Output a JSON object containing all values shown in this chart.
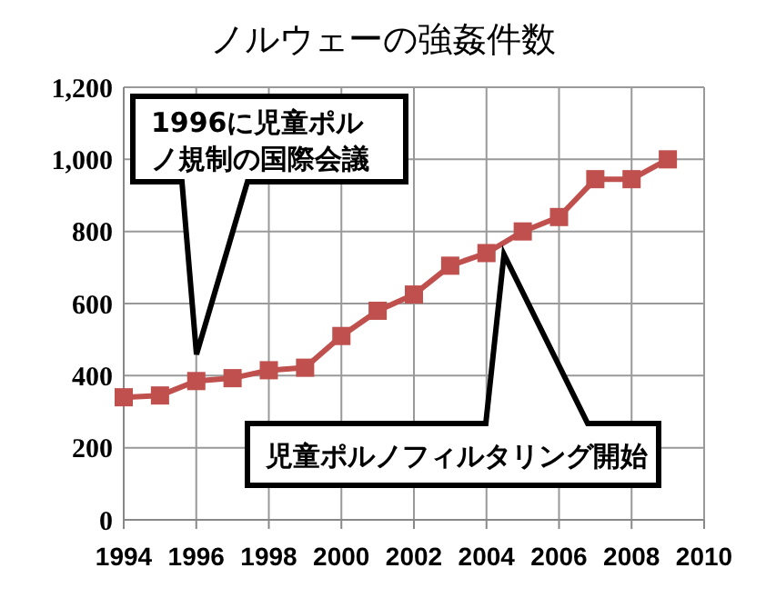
{
  "chart_data": {
    "type": "line",
    "title": "ノルウェーの強姦件数",
    "x": [
      1994,
      1995,
      1996,
      1997,
      1998,
      1999,
      2000,
      2001,
      2002,
      2003,
      2004,
      2005,
      2006,
      2007,
      2008,
      2009
    ],
    "series": [
      {
        "color": "#c0504d",
        "values": [
          340,
          345,
          385,
          393,
          415,
          422,
          510,
          580,
          625,
          705,
          740,
          800,
          840,
          945,
          945,
          1000
        ]
      }
    ],
    "xlim": [
      1994,
      2010
    ],
    "xticks": [
      1994,
      1996,
      1998,
      2000,
      2002,
      2004,
      2006,
      2008,
      2010
    ],
    "ylim": [
      0,
      1200
    ],
    "yticks": [
      0,
      {
        "value": 200,
        "label": "200"
      },
      {
        "value": 400,
        "label": "400"
      },
      {
        "value": 600,
        "label": "600"
      },
      {
        "value": 800,
        "label": "800"
      },
      {
        "value": 1000,
        "label": "1,000"
      },
      {
        "value": 1200,
        "label": "1,200"
      }
    ],
    "grid": true,
    "marker": "square",
    "line_style": "solid",
    "annotations": [
      "1996に児童ポルノ規制の国際会議",
      "児童ポルノフィルタリング開始"
    ]
  }
}
